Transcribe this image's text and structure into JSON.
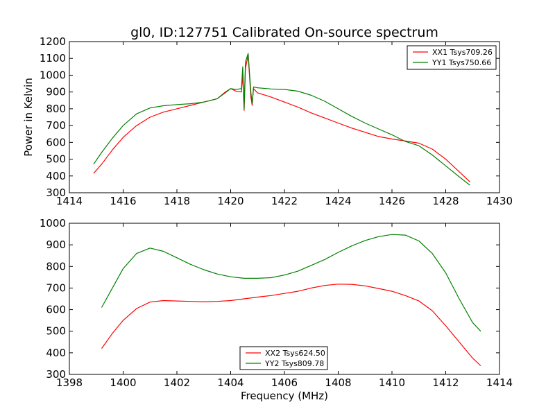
{
  "chart_data": [
    {
      "type": "line",
      "title": "gl0, ID:127751 Calibrated On-source spectrum",
      "xlabel": "",
      "ylabel": "Power in Kelvin",
      "xlim": [
        1414,
        1430
      ],
      "ylim": [
        300,
        1200
      ],
      "xticks": [
        "1414",
        "1416",
        "1418",
        "1420",
        "1422",
        "1424",
        "1426",
        "1428",
        "1430"
      ],
      "yticks": [
        "300",
        "400",
        "500",
        "600",
        "700",
        "800",
        "900",
        "1000",
        "1100",
        "1200"
      ],
      "legend_position": "top-right",
      "grid": false,
      "series": [
        {
          "name": "XX1 Tsys709.26",
          "color": "#ff0000",
          "x": [
            1414.9,
            1415.2,
            1415.6,
            1416,
            1416.5,
            1417,
            1417.5,
            1418,
            1418.5,
            1419,
            1419.5,
            1419.8,
            1420,
            1420.2,
            1420.4,
            1420.45,
            1420.5,
            1420.55,
            1420.65,
            1420.75,
            1420.8,
            1420.85,
            1421,
            1421.5,
            1422,
            1422.5,
            1423,
            1423.5,
            1424,
            1424.5,
            1425,
            1425.5,
            1426,
            1426.5,
            1427,
            1427.5,
            1428,
            1428.5,
            1428.9
          ],
          "y": [
            415,
            470,
            555,
            630,
            700,
            750,
            780,
            800,
            820,
            840,
            860,
            900,
            920,
            905,
            900,
            1000,
            790,
            1040,
            1120,
            870,
            820,
            920,
            895,
            870,
            840,
            810,
            775,
            745,
            715,
            685,
            660,
            635,
            620,
            608,
            595,
            560,
            500,
            425,
            365
          ]
        },
        {
          "name": "YY1 Tsys750.66",
          "color": "#008000",
          "x": [
            1414.9,
            1415.2,
            1415.6,
            1416,
            1416.5,
            1417,
            1417.5,
            1418,
            1418.5,
            1419,
            1419.5,
            1419.8,
            1420,
            1420.2,
            1420.4,
            1420.45,
            1420.5,
            1420.55,
            1420.65,
            1420.75,
            1420.8,
            1420.85,
            1421,
            1421.5,
            1422,
            1422.5,
            1423,
            1423.5,
            1424,
            1424.5,
            1425,
            1425.5,
            1426,
            1426.5,
            1427,
            1427.5,
            1428,
            1428.5,
            1428.9
          ],
          "y": [
            470,
            540,
            625,
            700,
            770,
            805,
            818,
            825,
            830,
            840,
            860,
            895,
            920,
            915,
            920,
            1050,
            800,
            1080,
            1130,
            900,
            830,
            930,
            925,
            918,
            915,
            905,
            880,
            845,
            800,
            755,
            715,
            680,
            645,
            605,
            580,
            525,
            460,
            395,
            345
          ]
        }
      ]
    },
    {
      "type": "line",
      "title": "",
      "xlabel": "Frequency (MHz)",
      "ylabel": "",
      "xlim": [
        1398,
        1414
      ],
      "ylim": [
        300,
        1000
      ],
      "xticks": [
        "1398",
        "1400",
        "1402",
        "1404",
        "1406",
        "1408",
        "1410",
        "1412",
        "1414"
      ],
      "yticks": [
        "300",
        "400",
        "500",
        "600",
        "700",
        "800",
        "900",
        "1000"
      ],
      "legend_position": "lower-center",
      "grid": false,
      "series": [
        {
          "name": "XX2 Tsys624.50",
          "color": "#ff0000",
          "x": [
            1399.2,
            1399.6,
            1400,
            1400.5,
            1401,
            1401.5,
            1402,
            1402.5,
            1403,
            1403.5,
            1404,
            1404.5,
            1405,
            1405.5,
            1406,
            1406.5,
            1407,
            1407.5,
            1408,
            1408.5,
            1409,
            1409.5,
            1410,
            1410.5,
            1411,
            1411.5,
            1412,
            1412.5,
            1413,
            1413.3
          ],
          "y": [
            420,
            490,
            550,
            605,
            635,
            642,
            640,
            638,
            636,
            638,
            642,
            650,
            658,
            665,
            675,
            685,
            700,
            712,
            718,
            717,
            710,
            698,
            685,
            665,
            640,
            595,
            525,
            450,
            375,
            340
          ]
        },
        {
          "name": "YY2 Tsys809.78",
          "color": "#008000",
          "x": [
            1399.2,
            1399.6,
            1400,
            1400.5,
            1401,
            1401.5,
            1402,
            1402.5,
            1403,
            1403.5,
            1404,
            1404.5,
            1405,
            1405.5,
            1406,
            1406.5,
            1407,
            1407.5,
            1408,
            1408.5,
            1409,
            1409.5,
            1410,
            1410.5,
            1411,
            1411.5,
            1412,
            1412.5,
            1413,
            1413.3
          ],
          "y": [
            610,
            700,
            790,
            860,
            885,
            870,
            840,
            810,
            785,
            765,
            752,
            745,
            745,
            748,
            760,
            778,
            805,
            832,
            865,
            895,
            920,
            938,
            948,
            945,
            918,
            860,
            770,
            650,
            540,
            500
          ]
        }
      ]
    }
  ]
}
